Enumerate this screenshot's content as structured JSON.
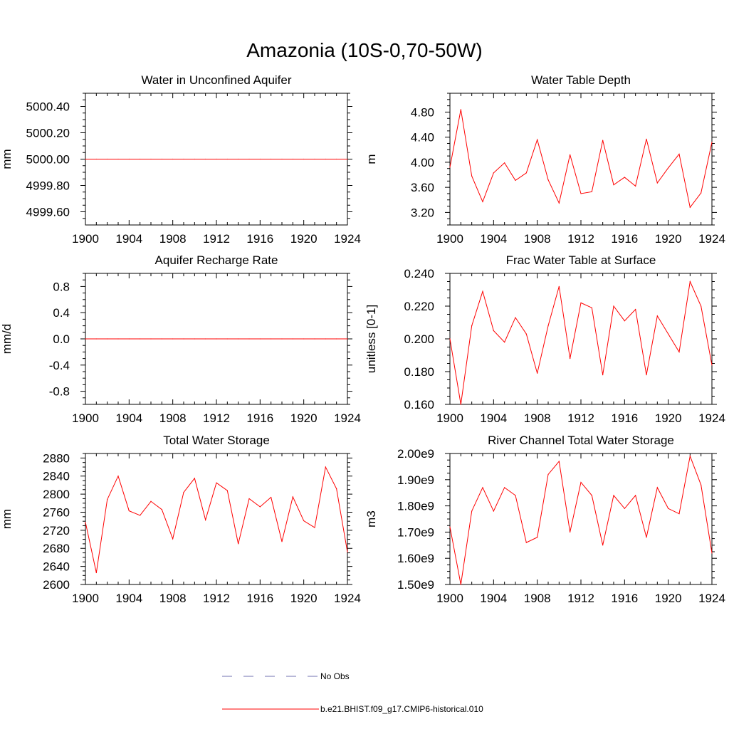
{
  "page_title": "Amazonia (10S-0,70-50W)",
  "legend": {
    "items": [
      {
        "label": "No Obs",
        "style": "dashed",
        "color": "#7070b0"
      },
      {
        "label": "b.e21.BHIST.f09_g17.CMIP6-historical.010",
        "style": "solid",
        "color": "#ff0000"
      }
    ]
  },
  "chart_data": [
    {
      "type": "line",
      "title": "Water in Unconfined Aquifer",
      "ylabel": "mm",
      "xlim": [
        1900,
        1924
      ],
      "ylim": [
        4999.5,
        5000.5
      ],
      "xticks": [
        1900,
        1904,
        1908,
        1912,
        1916,
        1920,
        1924
      ],
      "yticks": [
        4999.6,
        4999.8,
        5000.0,
        5000.2,
        5000.4
      ],
      "ytick_labels": [
        "4999.60",
        "4999.80",
        "5000.00",
        "5000.20",
        "5000.40"
      ],
      "x": [
        1900,
        1901,
        1902,
        1903,
        1904,
        1905,
        1906,
        1907,
        1908,
        1909,
        1910,
        1911,
        1912,
        1913,
        1914,
        1915,
        1916,
        1917,
        1918,
        1919,
        1920,
        1921,
        1922,
        1923,
        1924
      ],
      "series": [
        {
          "name": "b.e21.BHIST.f09_g17.CMIP6-historical.010",
          "color": "#ff0000",
          "values": [
            5000,
            5000,
            5000,
            5000,
            5000,
            5000,
            5000,
            5000,
            5000,
            5000,
            5000,
            5000,
            5000,
            5000,
            5000,
            5000,
            5000,
            5000,
            5000,
            5000,
            5000,
            5000,
            5000,
            5000,
            5000
          ]
        }
      ]
    },
    {
      "type": "line",
      "title": "Water Table Depth",
      "ylabel": "m",
      "xlim": [
        1900,
        1924
      ],
      "ylim": [
        3.0,
        5.1
      ],
      "xticks": [
        1900,
        1904,
        1908,
        1912,
        1916,
        1920,
        1924
      ],
      "yticks": [
        3.2,
        3.6,
        4.0,
        4.4,
        4.8
      ],
      "ytick_labels": [
        "3.20",
        "3.60",
        "4.00",
        "4.40",
        "4.80"
      ],
      "x": [
        1900,
        1901,
        1902,
        1903,
        1904,
        1905,
        1906,
        1907,
        1908,
        1909,
        1910,
        1911,
        1912,
        1913,
        1914,
        1915,
        1916,
        1917,
        1918,
        1919,
        1920,
        1921,
        1922,
        1923,
        1924
      ],
      "series": [
        {
          "name": "b.e21.BHIST.f09_g17.CMIP6-historical.010",
          "color": "#ff0000",
          "values": [
            3.92,
            4.84,
            3.78,
            3.37,
            3.83,
            3.99,
            3.71,
            3.83,
            4.36,
            3.72,
            3.35,
            4.12,
            3.5,
            3.53,
            4.35,
            3.64,
            3.76,
            3.62,
            4.37,
            3.67,
            3.91,
            4.13,
            3.28,
            3.51,
            4.32
          ]
        }
      ]
    },
    {
      "type": "line",
      "title": "Aquifer Recharge Rate",
      "ylabel": "mm/d",
      "xlim": [
        1900,
        1924
      ],
      "ylim": [
        -1.0,
        1.0
      ],
      "xticks": [
        1900,
        1904,
        1908,
        1912,
        1916,
        1920,
        1924
      ],
      "yticks": [
        -0.8,
        -0.4,
        0.0,
        0.4,
        0.8
      ],
      "ytick_labels": [
        "-0.8",
        "-0.4",
        "0.0",
        "0.4",
        "0.8"
      ],
      "x": [
        1900,
        1901,
        1902,
        1903,
        1904,
        1905,
        1906,
        1907,
        1908,
        1909,
        1910,
        1911,
        1912,
        1913,
        1914,
        1915,
        1916,
        1917,
        1918,
        1919,
        1920,
        1921,
        1922,
        1923,
        1924
      ],
      "series": [
        {
          "name": "b.e21.BHIST.f09_g17.CMIP6-historical.010",
          "color": "#ff0000",
          "values": [
            0,
            0,
            0,
            0,
            0,
            0,
            0,
            0,
            0,
            0,
            0,
            0,
            0,
            0,
            0,
            0,
            0,
            0,
            0,
            0,
            0,
            0,
            0,
            0,
            0
          ]
        }
      ]
    },
    {
      "type": "line",
      "title": "Frac Water Table at Surface",
      "ylabel": "unitless [0-1]",
      "xlim": [
        1900,
        1924
      ],
      "ylim": [
        0.16,
        0.24
      ],
      "xticks": [
        1900,
        1904,
        1908,
        1912,
        1916,
        1920,
        1924
      ],
      "yticks": [
        0.16,
        0.18,
        0.2,
        0.22,
        0.24
      ],
      "ytick_labels": [
        "0.160",
        "0.180",
        "0.200",
        "0.220",
        "0.240"
      ],
      "x": [
        1900,
        1901,
        1902,
        1903,
        1904,
        1905,
        1906,
        1907,
        1908,
        1909,
        1910,
        1911,
        1912,
        1913,
        1914,
        1915,
        1916,
        1917,
        1918,
        1919,
        1920,
        1921,
        1922,
        1923,
        1924
      ],
      "series": [
        {
          "name": "b.e21.BHIST.f09_g17.CMIP6-historical.010",
          "color": "#ff0000",
          "values": [
            0.2,
            0.16,
            0.208,
            0.229,
            0.205,
            0.198,
            0.213,
            0.203,
            0.179,
            0.208,
            0.232,
            0.188,
            0.222,
            0.219,
            0.178,
            0.22,
            0.211,
            0.218,
            0.178,
            0.214,
            0.203,
            0.192,
            0.235,
            0.22,
            0.184
          ]
        }
      ]
    },
    {
      "type": "line",
      "title": "Total Water Storage",
      "ylabel": "mm",
      "xlim": [
        1900,
        1924
      ],
      "ylim": [
        2600,
        2890
      ],
      "xticks": [
        1900,
        1904,
        1908,
        1912,
        1916,
        1920,
        1924
      ],
      "yticks": [
        2600,
        2640,
        2680,
        2720,
        2760,
        2800,
        2840,
        2880
      ],
      "ytick_labels": [
        "2600",
        "2640",
        "2680",
        "2720",
        "2760",
        "2800",
        "2840",
        "2880"
      ],
      "x": [
        1900,
        1901,
        1902,
        1903,
        1904,
        1905,
        1906,
        1907,
        1908,
        1909,
        1910,
        1911,
        1912,
        1913,
        1914,
        1915,
        1916,
        1917,
        1918,
        1919,
        1920,
        1921,
        1922,
        1923,
        1924
      ],
      "series": [
        {
          "name": "b.e21.BHIST.f09_g17.CMIP6-historical.010",
          "color": "#ff0000",
          "values": [
            2738,
            2626,
            2788,
            2840,
            2763,
            2753,
            2784,
            2766,
            2701,
            2804,
            2835,
            2743,
            2825,
            2808,
            2690,
            2790,
            2772,
            2793,
            2695,
            2794,
            2741,
            2726,
            2860,
            2812,
            2672
          ]
        }
      ]
    },
    {
      "type": "line",
      "title": "River Channel Total Water Storage",
      "ylabel": "m3",
      "xlim": [
        1900,
        1924
      ],
      "ylim": [
        1500000000.0,
        2000000000.0
      ],
      "xticks": [
        1900,
        1904,
        1908,
        1912,
        1916,
        1920,
        1924
      ],
      "yticks": [
        1500000000.0,
        1600000000.0,
        1700000000.0,
        1800000000.0,
        1900000000.0,
        2000000000.0
      ],
      "ytick_labels": [
        "1.50e9",
        "1.60e9",
        "1.70e9",
        "1.80e9",
        "1.90e9",
        "2.00e9"
      ],
      "x": [
        1900,
        1901,
        1902,
        1903,
        1904,
        1905,
        1906,
        1907,
        1908,
        1909,
        1910,
        1911,
        1912,
        1913,
        1914,
        1915,
        1916,
        1917,
        1918,
        1919,
        1920,
        1921,
        1922,
        1923,
        1924
      ],
      "series": [
        {
          "name": "b.e21.BHIST.f09_g17.CMIP6-historical.010",
          "color": "#ff0000",
          "values": [
            1720000000.0,
            1500000000.0,
            1780000000.0,
            1870000000.0,
            1780000000.0,
            1870000000.0,
            1840000000.0,
            1660000000.0,
            1680000000.0,
            1920000000.0,
            1970000000.0,
            1700000000.0,
            1890000000.0,
            1840000000.0,
            1650000000.0,
            1840000000.0,
            1790000000.0,
            1840000000.0,
            1680000000.0,
            1870000000.0,
            1790000000.0,
            1770000000.0,
            1990000000.0,
            1880000000.0,
            1620000000.0
          ]
        }
      ]
    }
  ]
}
